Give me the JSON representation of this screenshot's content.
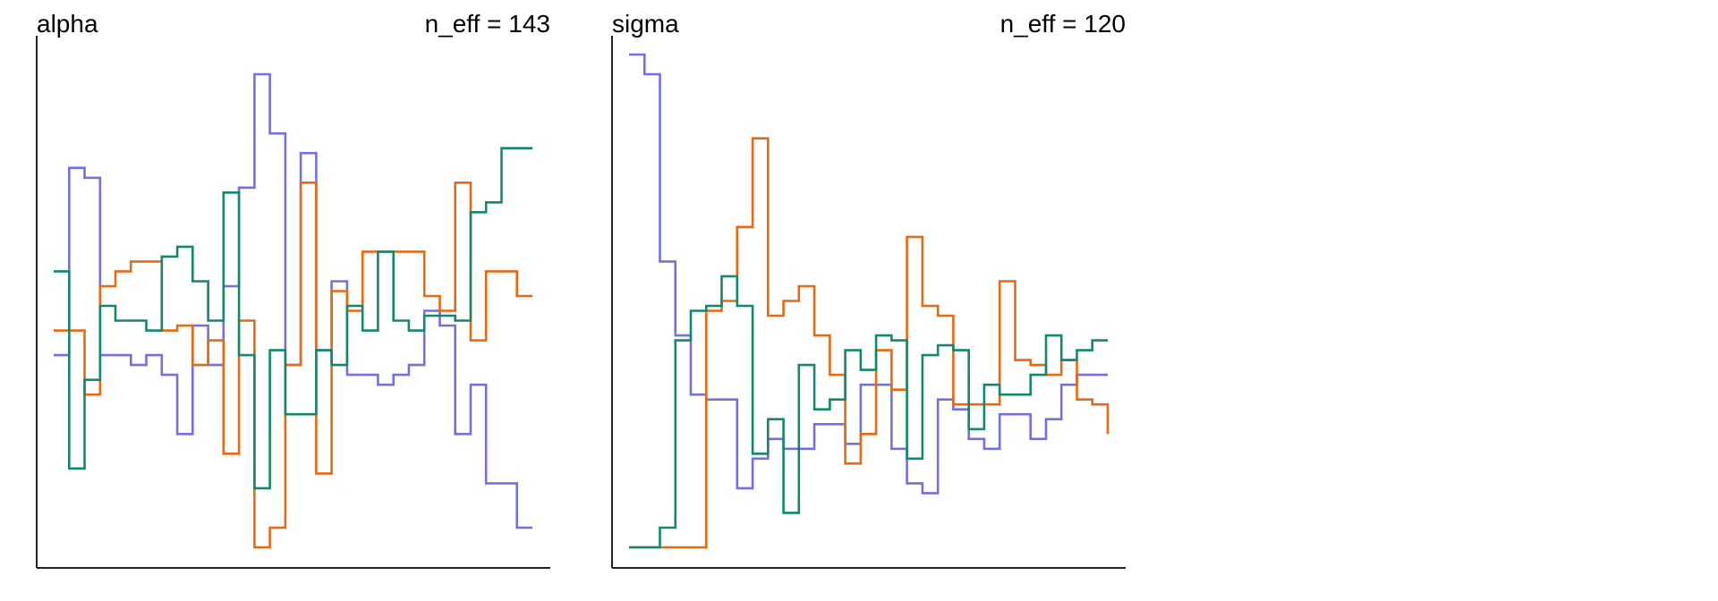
{
  "chart_data": [
    {
      "type": "line",
      "subtype": "trace-plot (step)",
      "title": "alpha",
      "annotation": "n_eff = 143",
      "ylim": [
        0,
        100
      ],
      "x": [
        1,
        2,
        3,
        4,
        5,
        6,
        7,
        8,
        9,
        10,
        11,
        12,
        13,
        14,
        15,
        16,
        17,
        18,
        19,
        20,
        21,
        22,
        23,
        24,
        25,
        26,
        27,
        28,
        29,
        30,
        31,
        32
      ],
      "series": [
        {
          "color": "#7570e0",
          "values": [
            39,
            77,
            75,
            39,
            39,
            37,
            39,
            35,
            23,
            45,
            37,
            53,
            73,
            96,
            84,
            37,
            80,
            40,
            54,
            35,
            35,
            33,
            35,
            37,
            48,
            45,
            23,
            33,
            13,
            13,
            4,
            4
          ]
        },
        {
          "color": "#e66a12",
          "values": [
            44,
            44,
            31,
            53,
            56,
            58,
            58,
            44,
            45,
            37,
            42,
            19,
            46,
            0,
            4,
            37,
            74,
            15,
            52,
            48,
            60,
            60,
            60,
            60,
            51,
            48,
            74,
            42,
            56,
            56,
            51,
            51
          ]
        },
        {
          "color": "#13896c",
          "values": [
            56,
            16,
            34,
            49,
            46,
            46,
            44,
            59,
            61,
            54,
            46,
            72,
            39,
            12,
            40,
            27,
            27,
            40,
            37,
            49,
            44,
            60,
            46,
            44,
            47,
            47,
            46,
            68,
            70,
            81,
            81,
            81
          ]
        }
      ]
    },
    {
      "type": "line",
      "subtype": "trace-plot (step)",
      "title": "sigma",
      "annotation": "n_eff = 120",
      "ylim": [
        0,
        100
      ],
      "x": [
        1,
        2,
        3,
        4,
        5,
        6,
        7,
        8,
        9,
        10,
        11,
        12,
        13,
        14,
        15,
        16,
        17,
        18,
        19,
        20,
        21,
        22,
        23,
        24,
        25,
        26,
        27,
        28,
        29,
        30,
        31,
        32
      ],
      "series": [
        {
          "color": "#7570e0",
          "values": [
            100,
            96,
            58,
            43,
            31,
            30,
            30,
            12,
            18,
            22,
            20,
            20,
            25,
            25,
            21,
            33,
            33,
            20,
            13,
            11,
            30,
            28,
            22,
            20,
            27,
            27,
            22,
            26,
            33,
            35,
            35,
            35
          ]
        },
        {
          "color": "#e66a12",
          "values": [
            0,
            0,
            0,
            0,
            0,
            48,
            50,
            65,
            83,
            47,
            50,
            53,
            43,
            35,
            17,
            23,
            40,
            32,
            63,
            49,
            47,
            29,
            29,
            29,
            54,
            38,
            37,
            35,
            38,
            30,
            29,
            23
          ]
        },
        {
          "color": "#13896c",
          "values": [
            0,
            0,
            4,
            42,
            48,
            49,
            55,
            49,
            19,
            26,
            7,
            37,
            28,
            30,
            40,
            36,
            43,
            42,
            18,
            39,
            41,
            40,
            24,
            33,
            31,
            31,
            35,
            43,
            38,
            40,
            42,
            42
          ]
        }
      ]
    }
  ]
}
